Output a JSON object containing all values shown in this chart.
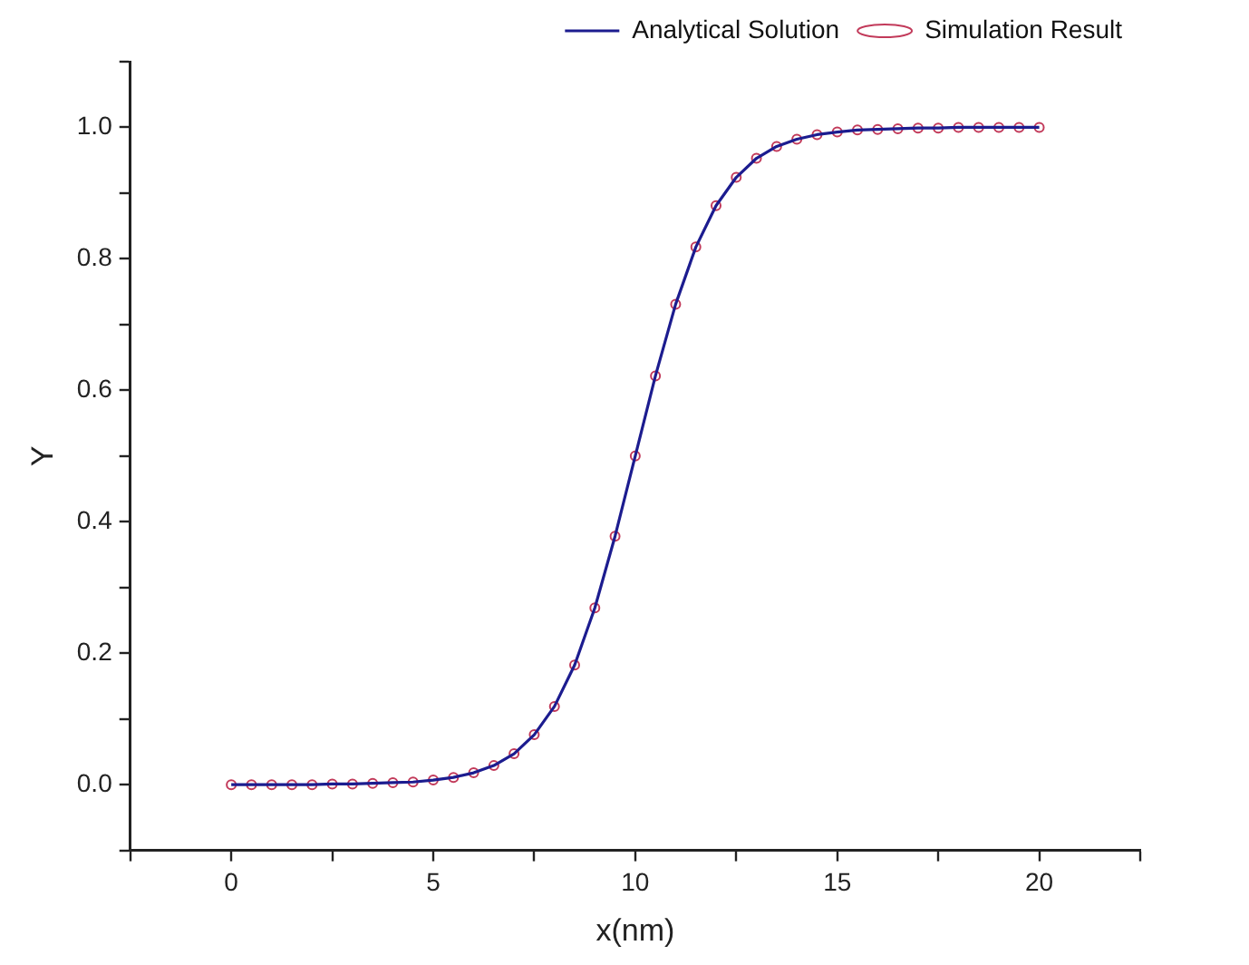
{
  "chart_data": {
    "type": "line",
    "xlabel": "x(nm)",
    "ylabel": "Y",
    "x": [
      0,
      0.5,
      1,
      1.5,
      2,
      2.5,
      3,
      3.5,
      4,
      4.5,
      5,
      5.5,
      6,
      6.5,
      7,
      7.5,
      8,
      8.5,
      9,
      9.5,
      10,
      10.5,
      11,
      11.5,
      12,
      12.5,
      13,
      13.5,
      14,
      14.5,
      15,
      15.5,
      16,
      16.5,
      17,
      17.5,
      18,
      18.5,
      19,
      19.5,
      20
    ],
    "series": [
      {
        "name": "Analytical Solution",
        "color": "#1c1c8f",
        "marker": "none",
        "values": [
          0,
          0,
          0,
          0,
          0,
          0.001,
          0.001,
          0.002,
          0.003,
          0.004,
          0.007,
          0.011,
          0.018,
          0.029,
          0.047,
          0.076,
          0.119,
          0.182,
          0.269,
          0.378,
          0.5,
          0.622,
          0.731,
          0.818,
          0.881,
          0.924,
          0.953,
          0.971,
          0.982,
          0.989,
          0.993,
          0.996,
          0.997,
          0.998,
          0.999,
          0.999,
          1,
          1,
          1,
          1,
          1
        ]
      },
      {
        "name": "Simulation Result",
        "type": "scatter",
        "color": "#c23a5a",
        "marker": "circle",
        "values": [
          0,
          0,
          0,
          0,
          0,
          0.001,
          0.001,
          0.002,
          0.003,
          0.004,
          0.007,
          0.011,
          0.018,
          0.029,
          0.047,
          0.076,
          0.119,
          0.182,
          0.269,
          0.378,
          0.5,
          0.622,
          0.731,
          0.818,
          0.881,
          0.924,
          0.953,
          0.971,
          0.982,
          0.989,
          0.993,
          0.996,
          0.997,
          0.998,
          0.999,
          0.999,
          1,
          1,
          1,
          1,
          1
        ]
      }
    ],
    "xlim": [
      -2.5,
      22.5
    ],
    "xticks": [
      {
        "value": -2.5,
        "label": null
      },
      0,
      {
        "value": 2.5,
        "label": null
      },
      5,
      {
        "value": 7.5,
        "label": null
      },
      10,
      {
        "value": 12.5,
        "label": null
      },
      15,
      {
        "value": 17.5,
        "label": null
      },
      20,
      {
        "value": 22.5,
        "label": null
      }
    ],
    "ylim": [
      -0.1,
      1.1
    ],
    "yticks": [
      {
        "value": -0.1,
        "label": null
      },
      {
        "value": 0,
        "label": "0.0"
      },
      {
        "value": 0.1,
        "label": null
      },
      {
        "value": 0.2,
        "label": "0.2"
      },
      {
        "value": 0.3,
        "label": null
      },
      {
        "value": 0.4,
        "label": "0.4"
      },
      {
        "value": 0.5,
        "label": null
      },
      {
        "value": 0.6,
        "label": "0.6"
      },
      {
        "value": 0.7,
        "label": null
      },
      {
        "value": 0.8,
        "label": "0.8"
      },
      {
        "value": 0.9,
        "label": null
      },
      {
        "value": 1,
        "label": "1.0"
      },
      {
        "value": 1.1,
        "label": null
      }
    ],
    "legend": "top right"
  }
}
